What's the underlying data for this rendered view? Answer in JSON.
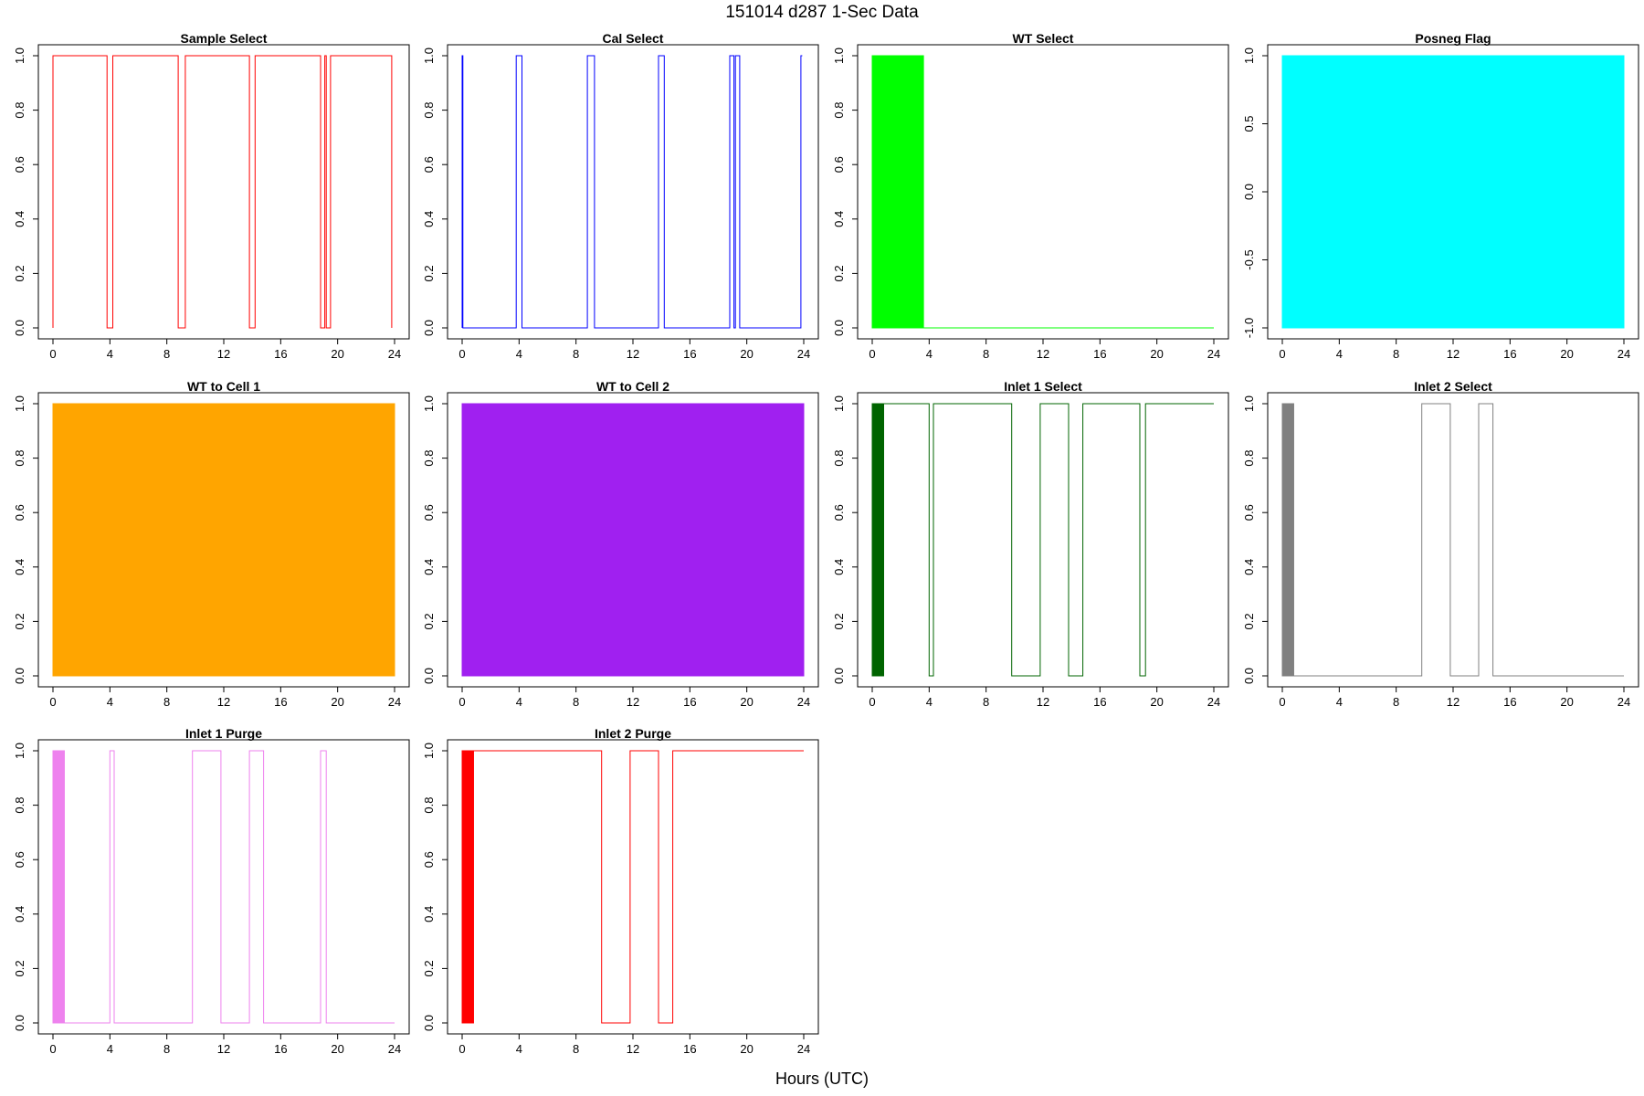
{
  "figure": {
    "title": "151014   d287   1-Sec Data",
    "xlabel": "Hours (UTC)"
  },
  "chart_data": [
    {
      "type": "line",
      "title": "Sample Select",
      "color": "#ff0000",
      "xlim": [
        0,
        24
      ],
      "ylim": [
        0,
        1
      ],
      "xticks": [
        0,
        4,
        8,
        12,
        16,
        20,
        24
      ],
      "yticks": [
        "0.0",
        "0.2",
        "0.4",
        "0.6",
        "0.8",
        "1.0"
      ],
      "series": [
        {
          "x": [
            0,
            0,
            3.8,
            3.8,
            4.2,
            4.2,
            8.8,
            8.8,
            9.3,
            9.3,
            13.8,
            13.8,
            14.2,
            14.2,
            18.8,
            18.8,
            19.1,
            19.1,
            19.2,
            19.2,
            19.5,
            19.5,
            23.8,
            23.8
          ],
          "y": [
            0,
            1,
            1,
            0,
            0,
            1,
            1,
            0,
            0,
            1,
            1,
            0,
            0,
            1,
            1,
            0,
            0,
            1,
            1,
            0,
            0,
            1,
            1,
            0
          ]
        }
      ]
    },
    {
      "type": "line",
      "title": "Cal Select",
      "color": "#0000ff",
      "xlim": [
        0,
        24
      ],
      "ylim": [
        0,
        1
      ],
      "xticks": [
        0,
        4,
        8,
        12,
        16,
        20,
        24
      ],
      "yticks": [
        "0.0",
        "0.2",
        "0.4",
        "0.6",
        "0.8",
        "1.0"
      ],
      "series": [
        {
          "x": [
            0,
            0,
            0.05,
            0.05,
            3.8,
            3.8,
            4.2,
            4.2,
            8.8,
            8.8,
            9.3,
            9.3,
            13.8,
            13.8,
            14.2,
            14.2,
            18.8,
            18.8,
            19.1,
            19.1,
            19.2,
            19.2,
            19.5,
            19.5,
            23.8,
            23.8,
            23.9
          ],
          "y": [
            0,
            1,
            1,
            0,
            0,
            1,
            1,
            0,
            0,
            1,
            1,
            0,
            0,
            1,
            1,
            0,
            0,
            1,
            1,
            0,
            0,
            1,
            1,
            0,
            0,
            1,
            1
          ]
        }
      ]
    },
    {
      "type": "area",
      "title": "WT Select",
      "color": "#00ff00",
      "xlim": [
        0,
        24
      ],
      "ylim": [
        0,
        1
      ],
      "xticks": [
        0,
        4,
        8,
        12,
        16,
        20,
        24
      ],
      "yticks": [
        "0.0",
        "0.2",
        "0.4",
        "0.6",
        "0.8",
        "1.0"
      ],
      "fill_spans": [
        [
          0,
          3.6,
          0,
          1
        ]
      ],
      "series": [
        {
          "x": [
            3.6,
            24
          ],
          "y": [
            0,
            0
          ]
        }
      ]
    },
    {
      "type": "area",
      "title": "Posneg Flag",
      "color": "#00ffff",
      "xlim": [
        0,
        24
      ],
      "ylim": [
        -1,
        1
      ],
      "xticks": [
        0,
        4,
        8,
        12,
        16,
        20,
        24
      ],
      "yticks": [
        "-1.0",
        "-0.5",
        "0.0",
        "0.5",
        "1.0"
      ],
      "fill_spans": [
        [
          0,
          24,
          -1,
          1
        ]
      ],
      "series": []
    },
    {
      "type": "area",
      "title": "WT to Cell 1",
      "color": "#ffa500",
      "xlim": [
        0,
        24
      ],
      "ylim": [
        0,
        1
      ],
      "xticks": [
        0,
        4,
        8,
        12,
        16,
        20,
        24
      ],
      "yticks": [
        "0.0",
        "0.2",
        "0.4",
        "0.6",
        "0.8",
        "1.0"
      ],
      "fill_spans": [
        [
          0,
          24,
          0,
          1
        ]
      ],
      "series": []
    },
    {
      "type": "area",
      "title": "WT to Cell 2",
      "color": "#a020f0",
      "xlim": [
        0,
        24
      ],
      "ylim": [
        0,
        1
      ],
      "xticks": [
        0,
        4,
        8,
        12,
        16,
        20,
        24
      ],
      "yticks": [
        "0.0",
        "0.2",
        "0.4",
        "0.6",
        "0.8",
        "1.0"
      ],
      "fill_spans": [
        [
          0,
          24,
          0,
          1
        ]
      ],
      "series": []
    },
    {
      "type": "line",
      "title": "Inlet 1 Select",
      "color": "#006400",
      "xlim": [
        0,
        24
      ],
      "ylim": [
        0,
        1
      ],
      "xticks": [
        0,
        4,
        8,
        12,
        16,
        20,
        24
      ],
      "yticks": [
        "0.0",
        "0.2",
        "0.4",
        "0.6",
        "0.8",
        "1.0"
      ],
      "fill_spans": [
        [
          0,
          0.8,
          0,
          1
        ]
      ],
      "series": [
        {
          "x": [
            0.8,
            0.8,
            4.0,
            4.0,
            4.3,
            4.3,
            9.8,
            9.8,
            11.8,
            11.8,
            13.8,
            13.8,
            14.8,
            14.8,
            18.8,
            18.8,
            19.2,
            19.2,
            24
          ],
          "y": [
            0,
            1,
            1,
            0,
            0,
            1,
            1,
            0,
            0,
            1,
            1,
            0,
            0,
            1,
            1,
            0,
            0,
            1,
            1
          ]
        }
      ]
    },
    {
      "type": "line",
      "title": "Inlet 2 Select",
      "color": "#808080",
      "xlim": [
        0,
        24
      ],
      "ylim": [
        0,
        1
      ],
      "xticks": [
        0,
        4,
        8,
        12,
        16,
        20,
        24
      ],
      "yticks": [
        "0.0",
        "0.2",
        "0.4",
        "0.6",
        "0.8",
        "1.0"
      ],
      "fill_spans": [
        [
          0,
          0.8,
          0,
          1
        ]
      ],
      "series": [
        {
          "x": [
            0.8,
            9.8,
            9.8,
            11.8,
            11.8,
            13.8,
            13.8,
            14.8,
            14.8,
            24
          ],
          "y": [
            0,
            0,
            1,
            1,
            0,
            0,
            1,
            1,
            0,
            0
          ]
        }
      ]
    },
    {
      "type": "line",
      "title": "Inlet 1 Purge",
      "color": "#ee82ee",
      "xlim": [
        0,
        24
      ],
      "ylim": [
        0,
        1
      ],
      "xticks": [
        0,
        4,
        8,
        12,
        16,
        20,
        24
      ],
      "yticks": [
        "0.0",
        "0.2",
        "0.4",
        "0.6",
        "0.8",
        "1.0"
      ],
      "fill_spans": [
        [
          0,
          0.8,
          0,
          1
        ]
      ],
      "series": [
        {
          "x": [
            0.8,
            4.0,
            4.0,
            4.3,
            4.3,
            9.8,
            9.8,
            11.8,
            11.8,
            13.8,
            13.8,
            14.8,
            14.8,
            18.8,
            18.8,
            19.2,
            19.2,
            24
          ],
          "y": [
            0,
            0,
            1,
            1,
            0,
            0,
            1,
            1,
            0,
            0,
            1,
            1,
            0,
            0,
            1,
            1,
            0,
            0
          ]
        }
      ]
    },
    {
      "type": "line",
      "title": "Inlet 2 Purge",
      "color": "#ff0000",
      "xlim": [
        0,
        24
      ],
      "ylim": [
        0,
        1
      ],
      "xticks": [
        0,
        4,
        8,
        12,
        16,
        20,
        24
      ],
      "yticks": [
        "0.0",
        "0.2",
        "0.4",
        "0.6",
        "0.8",
        "1.0"
      ],
      "fill_spans": [
        [
          0,
          0.8,
          0,
          1
        ]
      ],
      "series": [
        {
          "x": [
            0.8,
            9.8,
            9.8,
            11.8,
            11.8,
            13.8,
            13.8,
            14.8,
            14.8,
            24
          ],
          "y": [
            1,
            1,
            0,
            0,
            1,
            1,
            0,
            0,
            1,
            1
          ]
        }
      ]
    }
  ]
}
